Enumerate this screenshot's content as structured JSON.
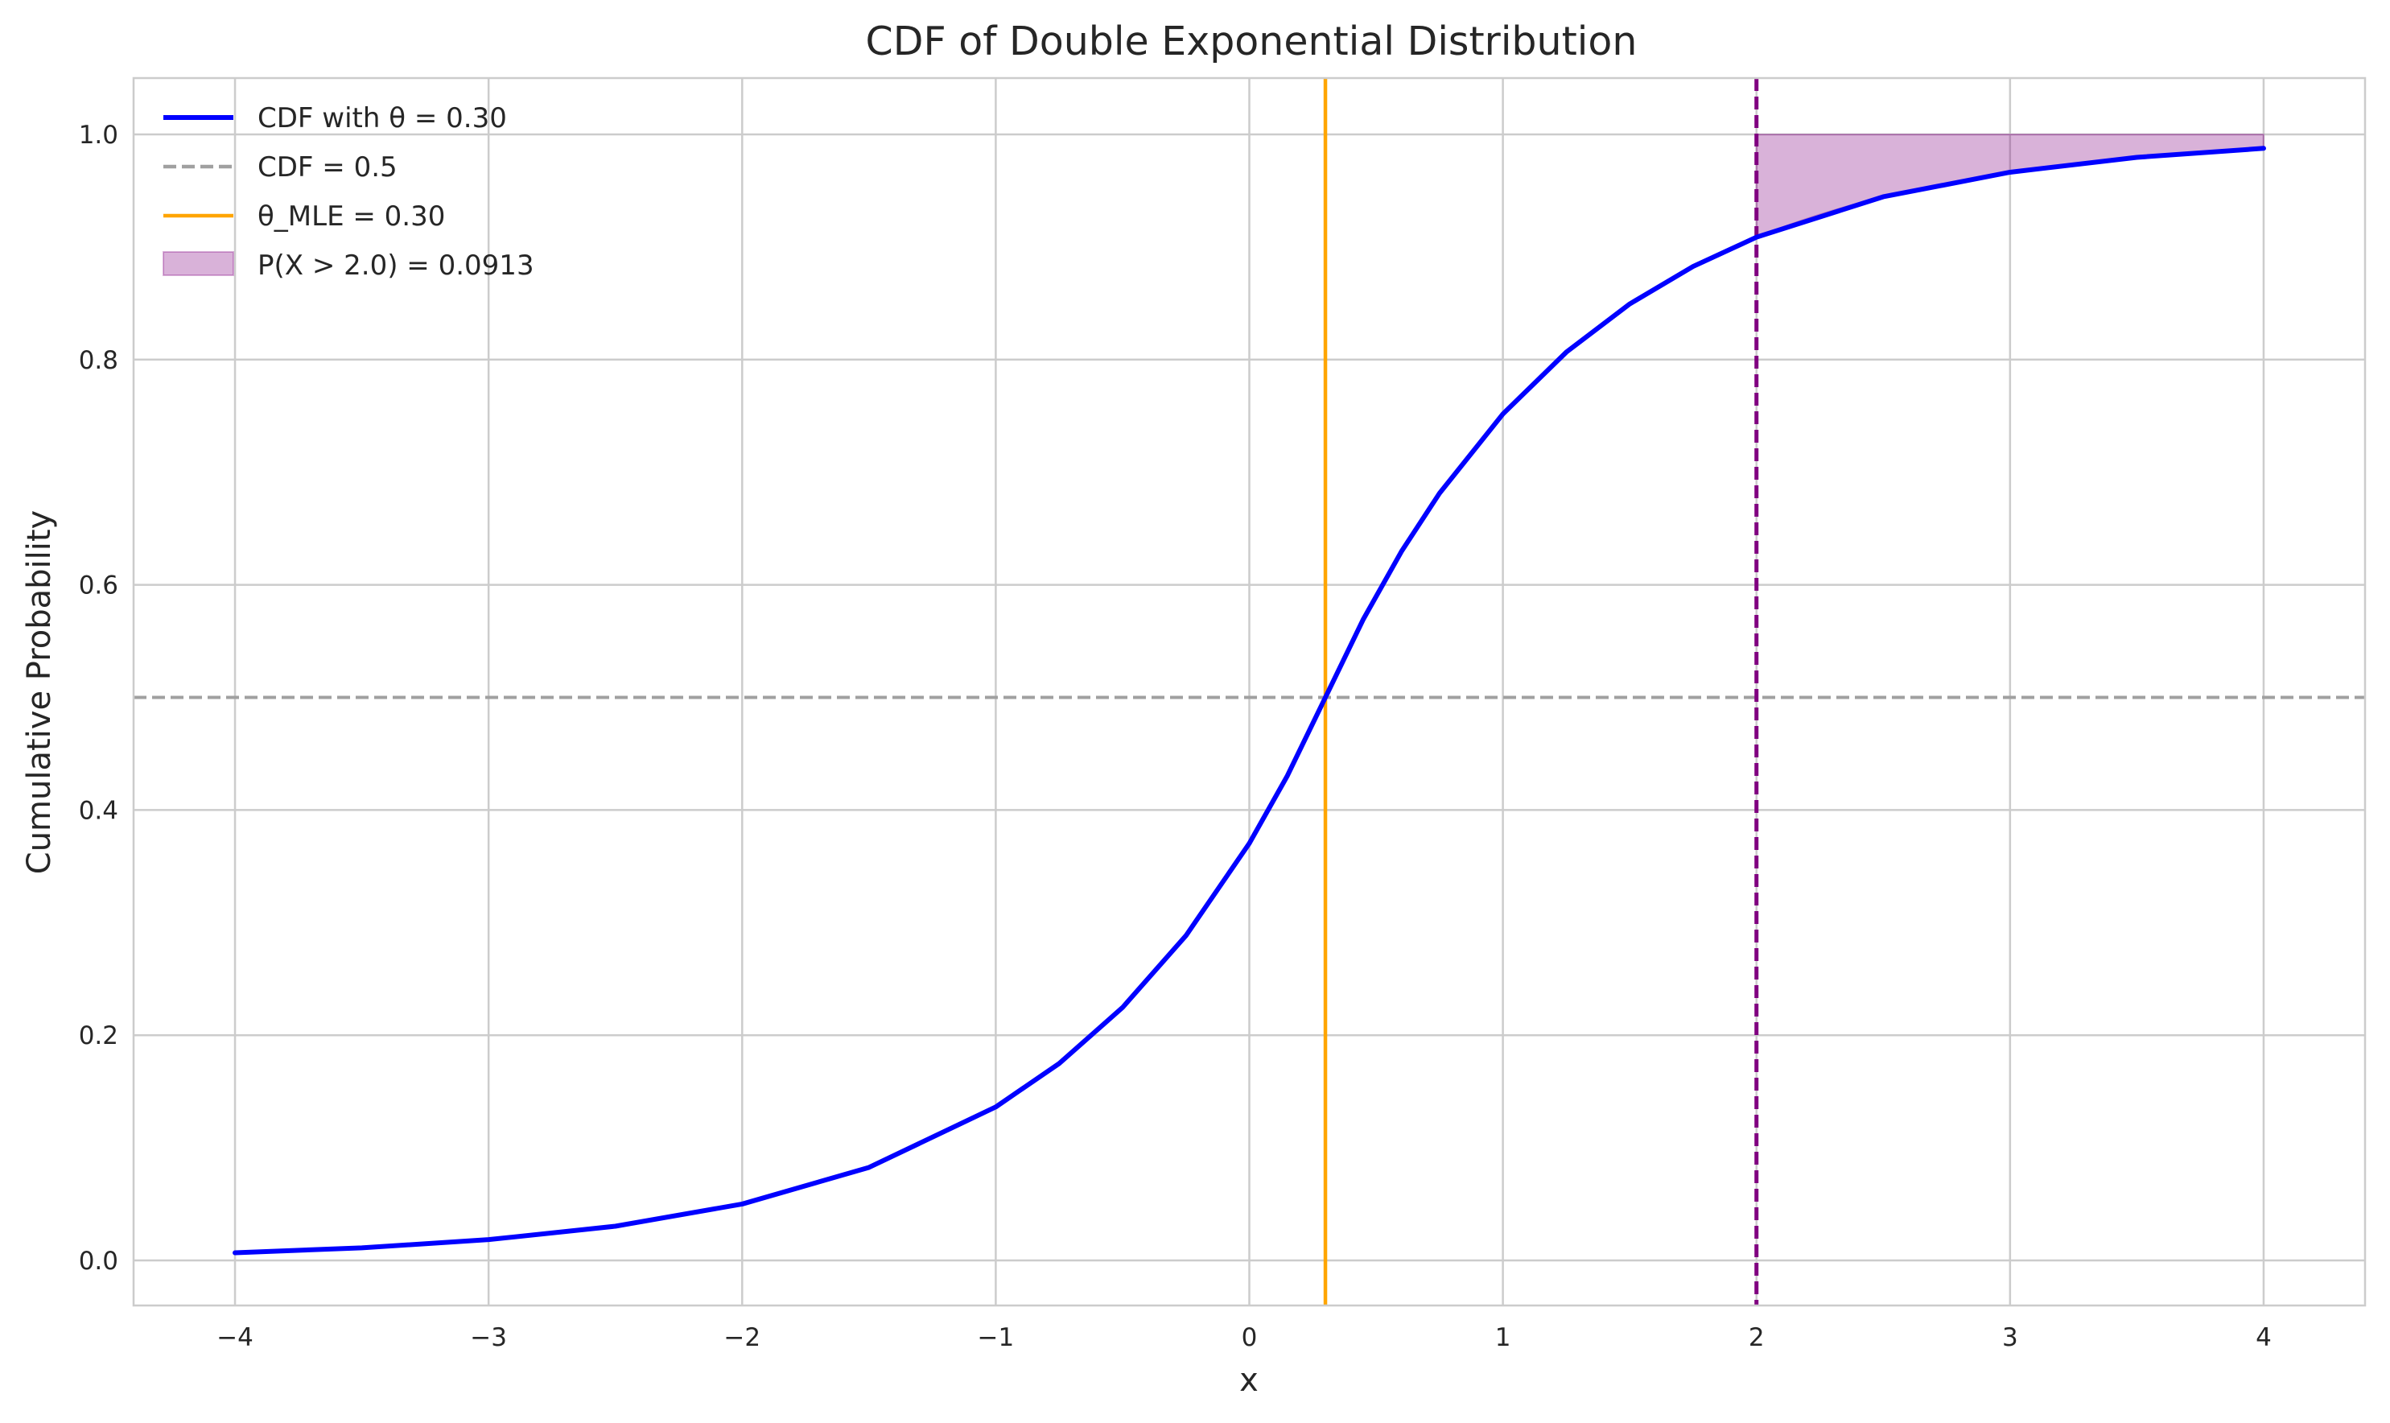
{
  "chart_data": {
    "type": "line",
    "title": "CDF of Double Exponential Distribution",
    "xlabel": "x",
    "ylabel": "Cumulative Probability",
    "xlim": [
      -4.4,
      4.4
    ],
    "ylim": [
      -0.04,
      1.05
    ],
    "xticks": [
      -4,
      -3,
      -2,
      -1,
      0,
      1,
      2,
      3,
      4
    ],
    "xtick_labels": [
      "−4",
      "−3",
      "−2",
      "−1",
      "0",
      "1",
      "2",
      "3",
      "4"
    ],
    "yticks": [
      0.0,
      0.2,
      0.4,
      0.6,
      0.8,
      1.0
    ],
    "ytick_labels": [
      "0.0",
      "0.2",
      "0.4",
      "0.6",
      "0.8",
      "1.0"
    ],
    "grid": true,
    "legend_position": "top-left",
    "theta": 0.3,
    "series": [
      {
        "name": "CDF with θ = 0.30",
        "kind": "line",
        "color": "#0000ff",
        "x": [
          -4.0,
          -3.5,
          -3.0,
          -2.5,
          -2.0,
          -1.5,
          -1.0,
          -0.75,
          -0.5,
          -0.25,
          0.0,
          0.15,
          0.3,
          0.45,
          0.6,
          0.75,
          1.0,
          1.25,
          1.5,
          1.75,
          2.0,
          2.5,
          3.0,
          3.5,
          4.0
        ],
        "y": [
          0.0068,
          0.0112,
          0.0185,
          0.0304,
          0.0501,
          0.0826,
          0.1363,
          0.1749,
          0.2246,
          0.2884,
          0.3704,
          0.4304,
          0.5,
          0.5696,
          0.6296,
          0.6813,
          0.7517,
          0.8066,
          0.8494,
          0.8827,
          0.9087,
          0.9446,
          0.9664,
          0.9796,
          0.9876
        ]
      },
      {
        "name": "CDF = 0.5",
        "kind": "hline",
        "color": "#a0a0a0",
        "y": 0.5
      },
      {
        "name": "θ_MLE = 0.30",
        "kind": "vline",
        "color": "#ffa500",
        "x": 0.3
      },
      {
        "name": "P(X > 2.0) = 0.0913",
        "kind": "fill",
        "color": "#800080",
        "x_from": 2.0,
        "x_to": 4.0,
        "upper": 1.0
      },
      {
        "kind": "vline-dashed",
        "color": "#800080",
        "x": 2.0
      }
    ]
  }
}
